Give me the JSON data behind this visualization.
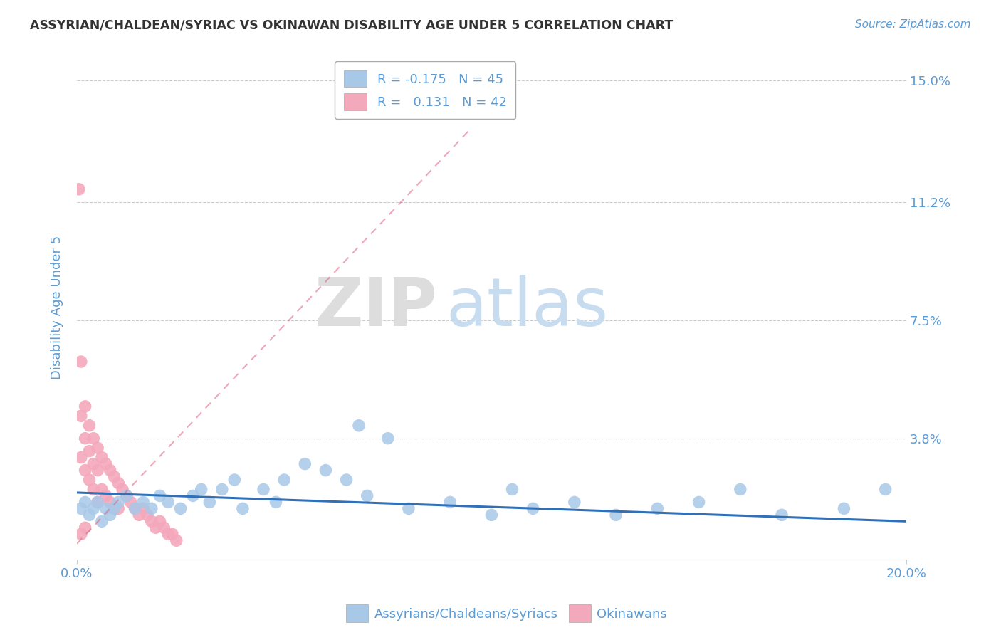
{
  "title": "ASSYRIAN/CHALDEAN/SYRIAC VS OKINAWAN DISABILITY AGE UNDER 5 CORRELATION CHART",
  "source_text": "Source: ZipAtlas.com",
  "ylabel": "Disability Age Under 5",
  "xlim": [
    0.0,
    0.2
  ],
  "ylim": [
    0.0,
    0.158
  ],
  "ytick_vals": [
    0.038,
    0.075,
    0.112,
    0.15
  ],
  "ytick_labels": [
    "3.8%",
    "7.5%",
    "11.2%",
    "15.0%"
  ],
  "legend_label1": "Assyrians/Chaldeans/Syriacs",
  "legend_label2": "Okinawans",
  "r1": -0.175,
  "n1": 45,
  "r2": 0.131,
  "n2": 42,
  "color_blue": "#A8C8E8",
  "color_pink": "#F4A8BC",
  "line_color_blue": "#3070B8",
  "line_color_pink": "#E06080",
  "title_color": "#333333",
  "axis_label_color": "#5B9BD5",
  "tick_color": "#5B9BD5",
  "watermark_zip_color": "#DDDDDD",
  "watermark_atlas_color": "#C8DCF0",
  "background_color": "#FFFFFF",
  "grid_color": "#CCCCCC",
  "blue_x": [
    0.001,
    0.002,
    0.003,
    0.004,
    0.005,
    0.006,
    0.007,
    0.008,
    0.009,
    0.01,
    0.012,
    0.014,
    0.016,
    0.018,
    0.02,
    0.022,
    0.025,
    0.028,
    0.03,
    0.032,
    0.035,
    0.038,
    0.04,
    0.045,
    0.05,
    0.055,
    0.06,
    0.065,
    0.07,
    0.08,
    0.09,
    0.1,
    0.11,
    0.12,
    0.13,
    0.14,
    0.15,
    0.16,
    0.17,
    0.185,
    0.195,
    0.068,
    0.075,
    0.105,
    0.048
  ],
  "blue_y": [
    0.016,
    0.018,
    0.014,
    0.016,
    0.018,
    0.012,
    0.016,
    0.014,
    0.016,
    0.018,
    0.02,
    0.016,
    0.018,
    0.016,
    0.02,
    0.018,
    0.016,
    0.02,
    0.022,
    0.018,
    0.022,
    0.025,
    0.016,
    0.022,
    0.025,
    0.03,
    0.028,
    0.025,
    0.02,
    0.016,
    0.018,
    0.014,
    0.016,
    0.018,
    0.014,
    0.016,
    0.018,
    0.022,
    0.014,
    0.016,
    0.022,
    0.042,
    0.038,
    0.022,
    0.018
  ],
  "pink_x": [
    0.0005,
    0.001,
    0.001,
    0.001,
    0.002,
    0.002,
    0.002,
    0.003,
    0.003,
    0.003,
    0.004,
    0.004,
    0.004,
    0.005,
    0.005,
    0.005,
    0.006,
    0.006,
    0.007,
    0.007,
    0.008,
    0.008,
    0.009,
    0.009,
    0.01,
    0.01,
    0.011,
    0.012,
    0.013,
    0.014,
    0.015,
    0.016,
    0.017,
    0.018,
    0.019,
    0.02,
    0.021,
    0.022,
    0.023,
    0.024,
    0.001,
    0.002
  ],
  "pink_y": [
    0.116,
    0.062,
    0.045,
    0.032,
    0.048,
    0.038,
    0.028,
    0.042,
    0.034,
    0.025,
    0.038,
    0.03,
    0.022,
    0.035,
    0.028,
    0.018,
    0.032,
    0.022,
    0.03,
    0.02,
    0.028,
    0.018,
    0.026,
    0.016,
    0.024,
    0.016,
    0.022,
    0.02,
    0.018,
    0.016,
    0.014,
    0.016,
    0.014,
    0.012,
    0.01,
    0.012,
    0.01,
    0.008,
    0.008,
    0.006,
    0.008,
    0.01
  ],
  "blue_line_x": [
    0.0,
    0.2
  ],
  "blue_line_y": [
    0.021,
    0.012
  ],
  "pink_line_x": [
    0.0,
    0.095
  ],
  "pink_line_y": [
    0.005,
    0.135
  ]
}
